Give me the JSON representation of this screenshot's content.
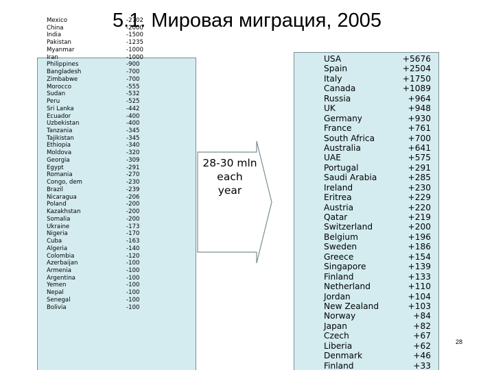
{
  "title": "5.1. Мировая миграция, 2005",
  "emigration": [
    {
      "country": "Mexico",
      "value": "-2702"
    },
    {
      "country": "China",
      "value": "-2000"
    },
    {
      "country": "India",
      "value": "-1500"
    },
    {
      "country": "Pakistan",
      "value": "-1235"
    },
    {
      "country": "Myanmar",
      "value": "-1000"
    },
    {
      "country": "Iran",
      "value": "-1000"
    },
    {
      "country": "Philippines",
      "value": "-900"
    },
    {
      "country": "Bangladesh",
      "value": "-700"
    },
    {
      "country": "Zimbabwe",
      "value": "-700"
    },
    {
      "country": "Morocco",
      "value": "-555"
    },
    {
      "country": "Sudan",
      "value": "-532"
    },
    {
      "country": "Peru",
      "value": "-525"
    },
    {
      "country": "Sri Lanka",
      "value": "-442"
    },
    {
      "country": "Ecuador",
      "value": "-400"
    },
    {
      "country": "Uzbekistan",
      "value": "-400"
    },
    {
      "country": "Tanzania",
      "value": "-345"
    },
    {
      "country": "Tajikistan",
      "value": "-345"
    },
    {
      "country": "Ethiopia",
      "value": "-340"
    },
    {
      "country": "Moldova",
      "value": "-320"
    },
    {
      "country": "Georgia",
      "value": "-309"
    },
    {
      "country": "Egypt",
      "value": "-291"
    },
    {
      "country": "Romania",
      "value": "-270"
    },
    {
      "country": "Congo, dem",
      "value": "-230"
    },
    {
      "country": "Brazil",
      "value": "-239"
    },
    {
      "country": "Nicaragua",
      "value": "-206"
    },
    {
      "country": "Poland",
      "value": "-200"
    },
    {
      "country": "Kazakhstan",
      "value": "-200"
    },
    {
      "country": "Somalia",
      "value": "-200"
    },
    {
      "country": "Ukraine",
      "value": "-173"
    },
    {
      "country": "Nigeria",
      "value": "-170"
    },
    {
      "country": "Cuba",
      "value": "-163"
    },
    {
      "country": "Algeria",
      "value": "-140"
    },
    {
      "country": "Colombia",
      "value": "-120"
    },
    {
      "country": "Azerbaijan",
      "value": "-100"
    },
    {
      "country": "Armenia",
      "value": "-100"
    },
    {
      "country": "Argentina",
      "value": "-100"
    },
    {
      "country": "Yemen",
      "value": "-100"
    },
    {
      "country": "Nepal",
      "value": "-100"
    },
    {
      "country": "Senegal",
      "value": "-100"
    },
    {
      "country": "Bolivia",
      "value": "-100"
    }
  ],
  "arrow": {
    "label_lines": [
      "28-30 mln",
      "each",
      "year"
    ]
  },
  "immigration": [
    {
      "country": "USA",
      "value": "+5676"
    },
    {
      "country": "Spain",
      "value": "+2504"
    },
    {
      "country": "Italy",
      "value": "+1750"
    },
    {
      "country": "Canada",
      "value": "+1089"
    },
    {
      "country": "Russia",
      "value": "+964"
    },
    {
      "country": "UK",
      "value": "+948"
    },
    {
      "country": "Germany",
      "value": "+930"
    },
    {
      "country": "France",
      "value": "+761"
    },
    {
      "country": "South Africa",
      "value": "+700"
    },
    {
      "country": "Australia",
      "value": "+641"
    },
    {
      "country": "UAE",
      "value": "+575"
    },
    {
      "country": "Portugal",
      "value": "+291"
    },
    {
      "country": "Saudi Arabia",
      "value": "+285"
    },
    {
      "country": "Ireland",
      "value": "+230"
    },
    {
      "country": "Eritrea",
      "value": "+229"
    },
    {
      "country": "Austria",
      "value": "+220"
    },
    {
      "country": "Qatar",
      "value": "+219"
    },
    {
      "country": "Switzerland",
      "value": "+200"
    },
    {
      "country": "Belgium",
      "value": "+196"
    },
    {
      "country": "Sweden",
      "value": "+186"
    },
    {
      "country": "Greece",
      "value": "+154"
    },
    {
      "country": "Singapore",
      "value": "+139"
    },
    {
      "country": "Finland",
      "value": "+133"
    },
    {
      "country": "Netherland",
      "value": "+110"
    },
    {
      "country": "Jordan",
      "value": "+104"
    },
    {
      "country": "New Zealand",
      "value": "+103"
    },
    {
      "country": "Norway",
      "value": "+84"
    },
    {
      "country": "Japan",
      "value": "+82"
    },
    {
      "country": "Czech",
      "value": "+67"
    },
    {
      "country": "Liberia",
      "value": "+62"
    },
    {
      "country": "Denmark",
      "value": "+46"
    },
    {
      "country": "Finland",
      "value": "+33"
    }
  ],
  "slide_number": "28",
  "colors": {
    "box_fill": "#d4ecf0",
    "box_border": "#7a8c90",
    "arrow_fill": "#ffffff",
    "arrow_stroke": "#7a8c90"
  }
}
